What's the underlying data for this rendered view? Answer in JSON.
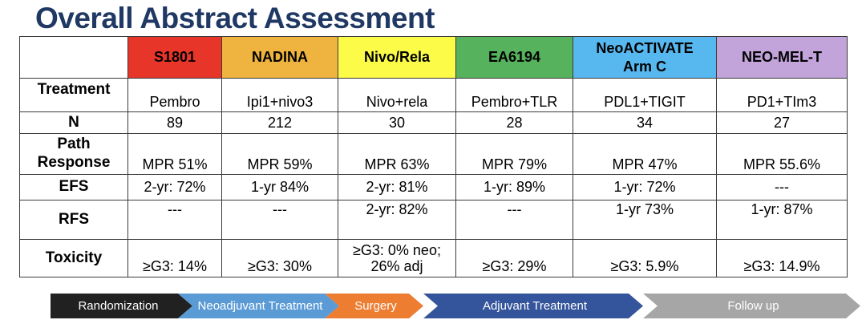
{
  "title": "Overall Abstract Assessment",
  "colors": {
    "title": "#1F3864",
    "table_border": "#3a3a3a"
  },
  "table": {
    "columns": [
      {
        "label": "",
        "color": "#FFFFFF"
      },
      {
        "label": "S1801",
        "color": "#E8352A"
      },
      {
        "label": "NADINA",
        "color": "#EFB440"
      },
      {
        "label": "Nivo/Rela",
        "color": "#FBFB48"
      },
      {
        "label": "EA6194",
        "color": "#56B25C"
      },
      {
        "label": "NeoACTIVATE\nArm C",
        "color": "#57B8EF"
      },
      {
        "label": "NEO-MEL-T",
        "color": "#C2A4DB"
      }
    ],
    "rows": [
      {
        "label": "Treatment",
        "values": [
          "Pembro",
          "Ipi1+nivo3",
          "Nivo+rela",
          "Pembro+TLR",
          "PDL1+TIGIT",
          "PD1+TIm3"
        ]
      },
      {
        "label": "N",
        "values": [
          "89",
          "212",
          "30",
          "28",
          "34",
          "27"
        ]
      },
      {
        "label": "Path\nResponse",
        "values": [
          "MPR 51%",
          "MPR 59%",
          "MPR 63%",
          "MPR 79%",
          "MPR 47%",
          "MPR 55.6%"
        ]
      },
      {
        "label": "EFS",
        "values": [
          "2-yr: 72%",
          "1-yr 84%",
          "2-yr: 81%",
          "1-yr: 89%",
          "1-yr: 72%",
          "---"
        ]
      },
      {
        "label": "RFS",
        "values": [
          "---",
          "---",
          "2-yr: 82%",
          "---",
          "1-yr 73%",
          "1-yr: 87%"
        ]
      },
      {
        "label": "Toxicity",
        "values": [
          "≥G3: 14%",
          "≥G3: 30%",
          "≥G3: 0% neo;\n26% adj",
          "≥G3: 29%",
          "≥G3: 5.9%",
          "≥G3: 14.9%"
        ]
      }
    ]
  },
  "timeline": {
    "steps": [
      {
        "label": "Randomization",
        "color": "#212121"
      },
      {
        "label": "Neoadjuvant Treatment",
        "color": "#5B9BD5"
      },
      {
        "label": "Surgery",
        "color": "#ED7D31"
      },
      {
        "label": "Adjuvant Treatment",
        "color": "#34549B"
      },
      {
        "label": "Follow up",
        "color": "#A6A6A6"
      }
    ]
  }
}
